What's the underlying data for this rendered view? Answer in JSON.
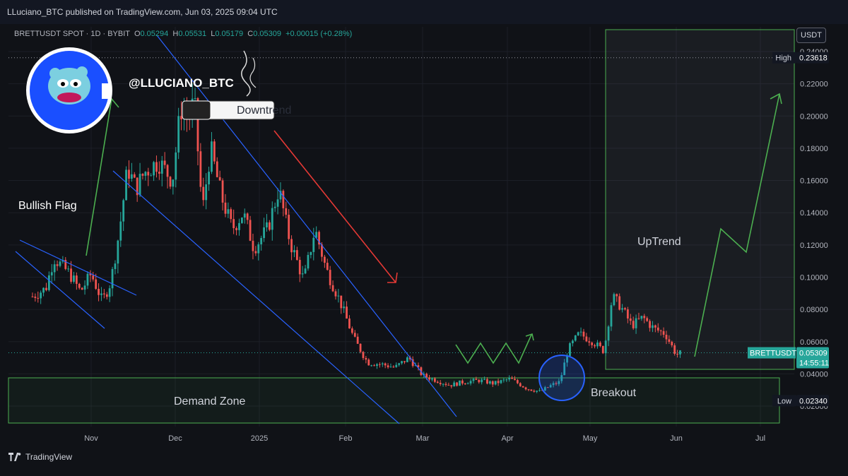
{
  "header": {
    "publisher": "LLuciano_BTC published on TradingView.com, Jun 03, 2025 09:04 UTC"
  },
  "legend": {
    "symbol": "BRETTUSDT SPOT · 1D · BYBIT",
    "open_label": "O",
    "open": "0.05294",
    "high_label": "H",
    "high": "0.05531",
    "low_label": "L",
    "low": "0.05179",
    "close_label": "C",
    "close": "0.05309",
    "change": "+0.00015 (+0.28%)"
  },
  "currency": "USDT",
  "watermark": "@LLUCIANO_BTC",
  "footer": {
    "brand": "TradingView"
  },
  "colors": {
    "up": "#26a69a",
    "down": "#ef5350",
    "channel": "#2962ff",
    "zone": "#4caf50",
    "arrow_up": "#4caf50",
    "arrow_down": "#e53935"
  },
  "markers": {
    "high": {
      "label": "High",
      "value": "0.23618"
    },
    "low": {
      "label": "Low",
      "value": "0.02340"
    },
    "last": {
      "label": "BRETTUSDT",
      "value": "0.05309",
      "countdown": "14:55:11"
    }
  },
  "annotations": {
    "bullish_flag": "Bullish Flag",
    "downtrend": "Downtrend",
    "demand_zone": "Demand Zone",
    "breakout": "Breakout",
    "uptrend": "UpTrend"
  },
  "chart_data": {
    "type": "line",
    "title": "BRETTUSDT SPOT · 1D · BYBIT",
    "ylabel": "USDT",
    "x_ticks": [
      "Nov",
      "Dec",
      "2025",
      "Feb",
      "Mar",
      "Apr",
      "May",
      "Jun",
      "Jul"
    ],
    "y_ticks": [
      "0.24000",
      "0.22000",
      "0.20000",
      "0.18000",
      "0.16000",
      "0.14000",
      "0.12000",
      "0.10000",
      "0.08000",
      "0.06000",
      "0.04000",
      "0.02000"
    ],
    "ylim": [
      0.012,
      0.248
    ],
    "grid": true,
    "series": [
      {
        "x": [
          "2024-10-10",
          "2024-10-15",
          "2024-10-18",
          "2024-10-24",
          "2024-10-28",
          "2024-11-01",
          "2024-11-05",
          "2024-11-08",
          "2024-11-11",
          "2024-11-14",
          "2024-11-17",
          "2024-11-20",
          "2024-11-25",
          "2024-11-30",
          "2024-12-03",
          "2024-12-06",
          "2024-12-08",
          "2024-12-11",
          "2024-12-14",
          "2024-12-18",
          "2024-12-22",
          "2024-12-26",
          "2024-12-30",
          "2025-01-04",
          "2025-01-08",
          "2025-01-12",
          "2025-01-17",
          "2025-01-21",
          "2025-01-25",
          "2025-01-30",
          "2025-02-04",
          "2025-02-09",
          "2025-02-14",
          "2025-02-19",
          "2025-02-24",
          "2025-03-01",
          "2025-03-06",
          "2025-03-11",
          "2025-03-16",
          "2025-03-22",
          "2025-03-27",
          "2025-04-02",
          "2025-04-08",
          "2025-04-13",
          "2025-04-17",
          "2025-04-20",
          "2025-04-23",
          "2025-04-27",
          "2025-05-02",
          "2025-05-06",
          "2025-05-09",
          "2025-05-12",
          "2025-05-16",
          "2025-05-20",
          "2025-05-24",
          "2025-05-28",
          "2025-06-01",
          "2025-06-03"
        ],
        "values": [
          0.088,
          0.093,
          0.112,
          0.102,
          0.091,
          0.102,
          0.085,
          0.097,
          0.128,
          0.168,
          0.155,
          0.165,
          0.172,
          0.16,
          0.205,
          0.198,
          0.21,
          0.14,
          0.18,
          0.15,
          0.13,
          0.14,
          0.118,
          0.13,
          0.155,
          0.122,
          0.098,
          0.13,
          0.105,
          0.085,
          0.062,
          0.047,
          0.046,
          0.044,
          0.05,
          0.039,
          0.036,
          0.033,
          0.035,
          0.036,
          0.034,
          0.037,
          0.031,
          0.029,
          0.033,
          0.035,
          0.055,
          0.065,
          0.06,
          0.054,
          0.088,
          0.082,
          0.07,
          0.075,
          0.068,
          0.065,
          0.052,
          0.053
        ]
      }
    ]
  }
}
